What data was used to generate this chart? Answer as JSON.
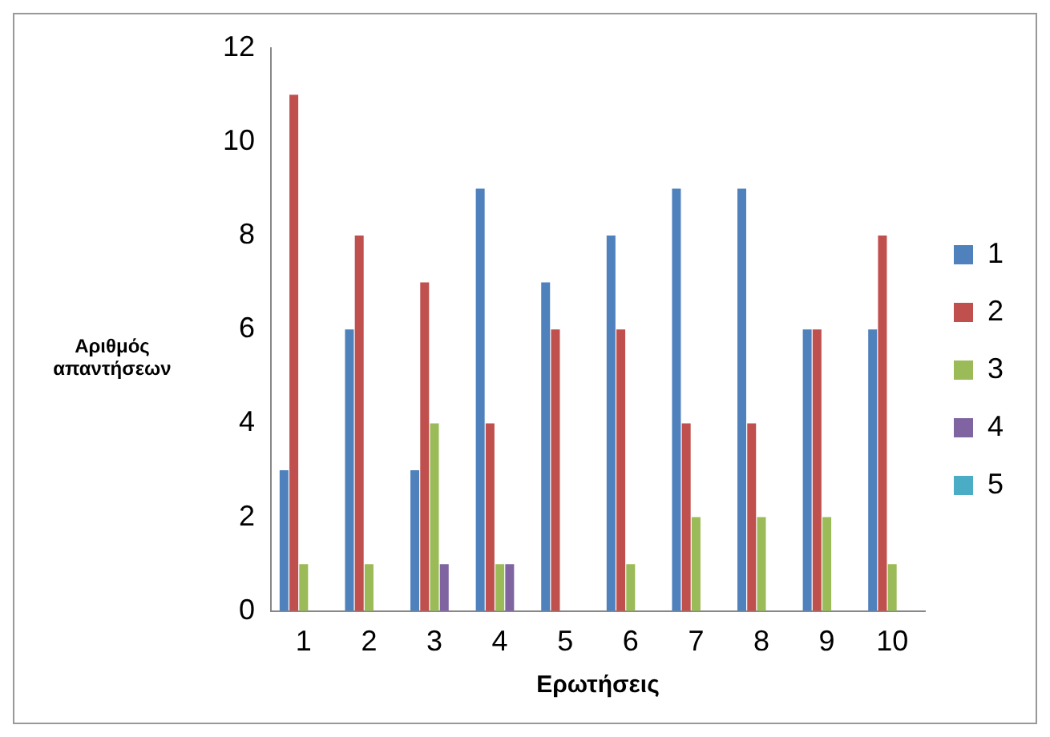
{
  "chart_data": {
    "type": "bar",
    "xlabel": "Ερωτήσεις",
    "ylabel": "Αριθμός απαντήσεων",
    "categories": [
      "1",
      "2",
      "3",
      "4",
      "5",
      "6",
      "7",
      "8",
      "9",
      "10"
    ],
    "series": [
      {
        "name": "1",
        "color": "#4f81bd",
        "values": [
          3,
          6,
          3,
          9,
          7,
          8,
          9,
          9,
          6,
          6
        ]
      },
      {
        "name": "2",
        "color": "#c0504d",
        "values": [
          11,
          8,
          7,
          4,
          6,
          6,
          4,
          4,
          6,
          8
        ]
      },
      {
        "name": "3",
        "color": "#9bbb59",
        "values": [
          1,
          1,
          4,
          1,
          0,
          1,
          2,
          2,
          2,
          1
        ]
      },
      {
        "name": "4",
        "color": "#8064a2",
        "values": [
          0,
          0,
          1,
          1,
          0,
          0,
          0,
          0,
          0,
          0
        ]
      },
      {
        "name": "5",
        "color": "#4bacc6",
        "values": [
          0,
          0,
          0,
          0,
          0,
          0,
          0,
          0,
          0,
          0
        ]
      }
    ],
    "ylim": [
      0,
      12
    ],
    "yticks": [
      0,
      2,
      4,
      6,
      8,
      10,
      12
    ],
    "grid": false,
    "legend": "right"
  }
}
